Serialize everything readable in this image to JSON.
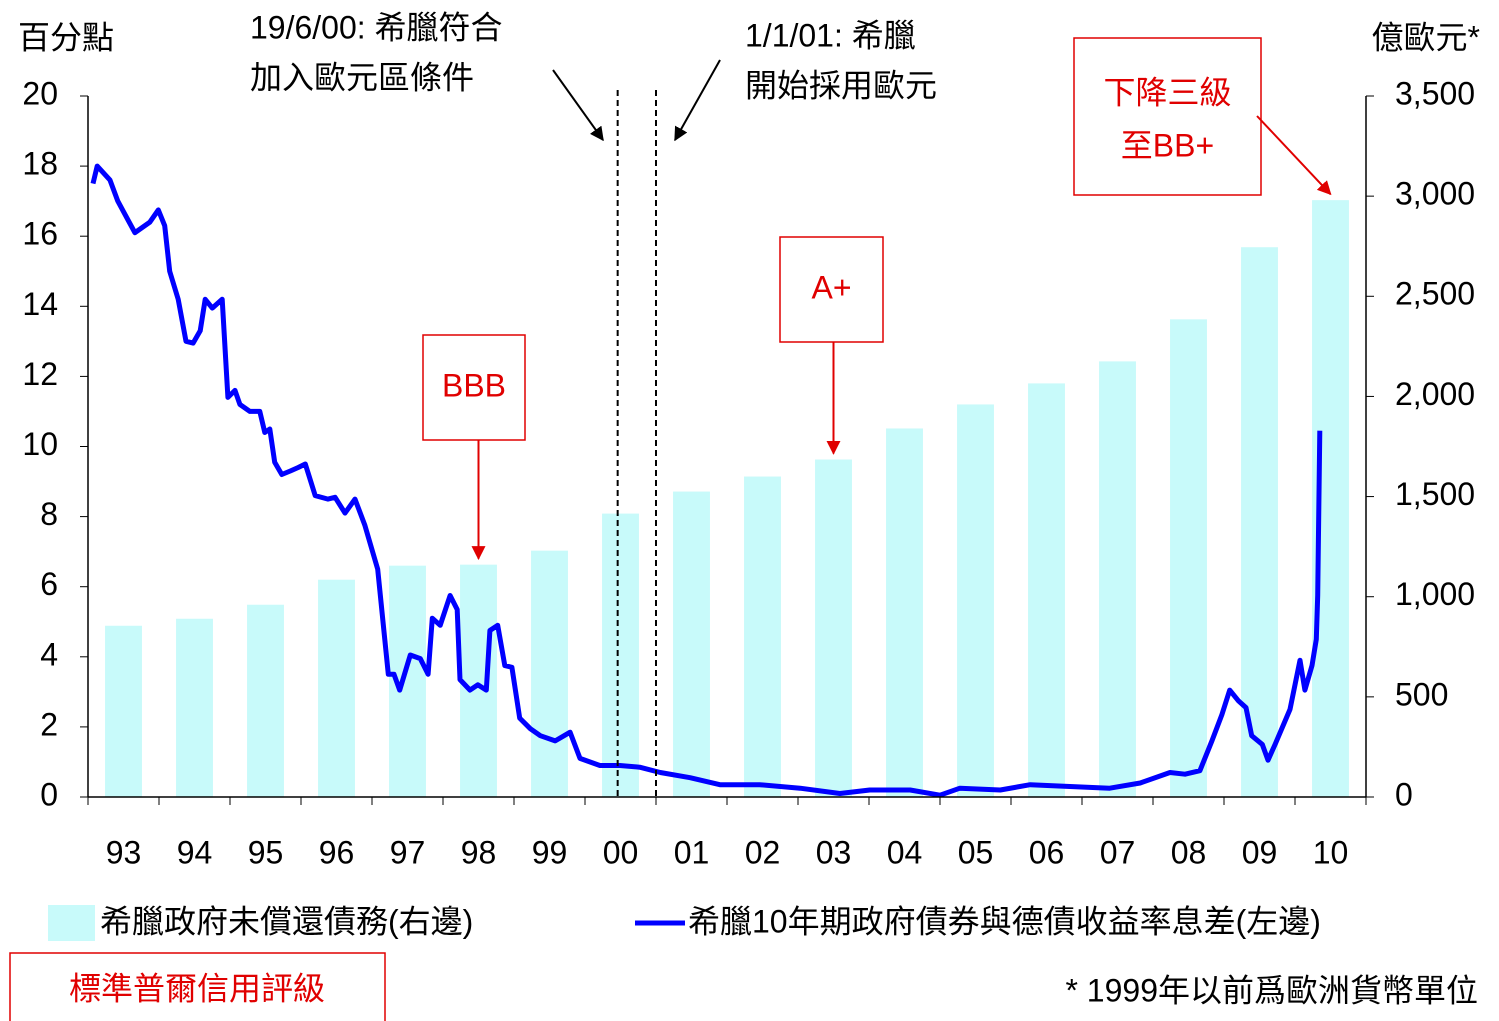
{
  "chart_data": {
    "type": "bar_line",
    "y_label": "百分點",
    "y2_label": "億歐元*",
    "categories": [
      "93",
      "94",
      "95",
      "96",
      "97",
      "98",
      "99",
      "00",
      "01",
      "02",
      "03",
      "04",
      "05",
      "06",
      "07",
      "08",
      "09",
      "10"
    ],
    "xlim": [
      1993,
      2011
    ],
    "ylim": [
      0,
      20
    ],
    "yticks": [
      0,
      2,
      4,
      6,
      8,
      10,
      12,
      14,
      16,
      18,
      20
    ],
    "y2lim": [
      0,
      3500
    ],
    "y2ticks": [
      0,
      500,
      {
        "value": 1000,
        "label": "1,000"
      },
      {
        "value": 1500,
        "label": "1,500"
      },
      {
        "value": 2000,
        "label": "2,000"
      },
      {
        "value": 2500,
        "label": "2,500"
      },
      {
        "value": 3000,
        "label": "3,000"
      },
      {
        "value": 3500,
        "label": "3,500"
      }
    ],
    "series": [
      {
        "name": "希臘政府未償還債務(右邊)",
        "type": "bar",
        "axis": "y2",
        "color": "#c8fafa",
        "values": [
          855,
          890,
          960,
          1085,
          1155,
          1160,
          1230,
          1415,
          1525,
          1600,
          1685,
          1840,
          1960,
          2065,
          2175,
          2385,
          2745,
          2980
        ]
      },
      {
        "name": "希臘10年期政府債券與德債收益率息差(左邊)",
        "type": "line",
        "color": "#0000ff",
        "x": [
          1993.07,
          1993.13,
          1993.31,
          1993.42,
          1993.66,
          1993.87,
          1993.99,
          1994.08,
          1994.15,
          1994.27,
          1994.38,
          1994.48,
          1994.58,
          1994.65,
          1994.75,
          1994.89,
          1994.97,
          1995.07,
          1995.14,
          1995.28,
          1995.42,
          1995.49,
          1995.56,
          1995.63,
          1995.73,
          1995.85,
          1995.96,
          1996.06,
          1996.2,
          1996.38,
          1996.48,
          1996.62,
          1996.76,
          1996.9,
          1997.08,
          1997.23,
          1997.31,
          1997.39,
          1997.54,
          1997.68,
          1997.79,
          1997.85,
          1997.96,
          1998.1,
          1998.2,
          1998.24,
          1998.38,
          1998.49,
          1998.61,
          1998.66,
          1998.77,
          1998.87,
          1998.97,
          1999.08,
          1999.23,
          1999.37,
          1999.58,
          1999.79,
          1999.93,
          2000.21,
          2000.49,
          2000.77,
          2001.06,
          2001.48,
          2001.9,
          2002.46,
          2003.03,
          2003.59,
          2004.01,
          2004.58,
          2005.0,
          2005.28,
          2005.85,
          2006.27,
          2006.83,
          2007.39,
          2007.82,
          2008.24,
          2008.45,
          2008.66,
          2008.83,
          2008.97,
          2009.08,
          2009.2,
          2009.31,
          2009.39,
          2009.54,
          2009.62,
          2009.72,
          2009.93,
          2010.07,
          2010.14,
          2010.24,
          2010.3,
          2010.32,
          2010.35
        ],
        "values": [
          17.5,
          18.0,
          17.6,
          17.0,
          16.1,
          16.4,
          16.75,
          16.3,
          15.0,
          14.2,
          13.0,
          12.95,
          13.3,
          14.2,
          13.95,
          14.2,
          11.4,
          11.6,
          11.2,
          11.0,
          11.0,
          10.4,
          10.5,
          9.55,
          9.2,
          9.3,
          9.4,
          9.5,
          8.6,
          8.5,
          8.55,
          8.1,
          8.5,
          7.75,
          6.5,
          3.5,
          3.5,
          3.05,
          4.05,
          3.95,
          3.5,
          5.1,
          4.9,
          5.75,
          5.35,
          3.35,
          3.05,
          3.2,
          3.05,
          4.75,
          4.9,
          3.75,
          3.7,
          2.25,
          1.95,
          1.75,
          1.6,
          1.85,
          1.1,
          0.9,
          0.9,
          0.85,
          0.7,
          0.55,
          0.35,
          0.35,
          0.25,
          0.1,
          0.2,
          0.2,
          0.05,
          0.25,
          0.2,
          0.35,
          0.3,
          0.25,
          0.4,
          0.7,
          0.65,
          0.75,
          1.6,
          2.35,
          3.05,
          2.75,
          2.55,
          1.75,
          1.5,
          1.05,
          1.5,
          2.5,
          3.9,
          3.05,
          3.75,
          4.5,
          5.75,
          10.45
        ]
      }
    ],
    "events": [
      {
        "x": 2000.46,
        "label": [
          "19/6/00: 希臘符合",
          "加入歐元區條件"
        ]
      },
      {
        "x": 2001.0,
        "label": [
          "1/1/01: 希臘",
          "開始採用歐元"
        ]
      }
    ],
    "ratings": [
      {
        "category": "98",
        "label": [
          "BBB"
        ]
      },
      {
        "category": "03",
        "label": [
          "A+"
        ]
      },
      {
        "category": "10",
        "label": [
          "下降三級",
          "至BB+"
        ]
      }
    ],
    "ratings_title": "標準普爾信用評級",
    "note": "* 1999年以前爲歐洲貨幣單位"
  }
}
